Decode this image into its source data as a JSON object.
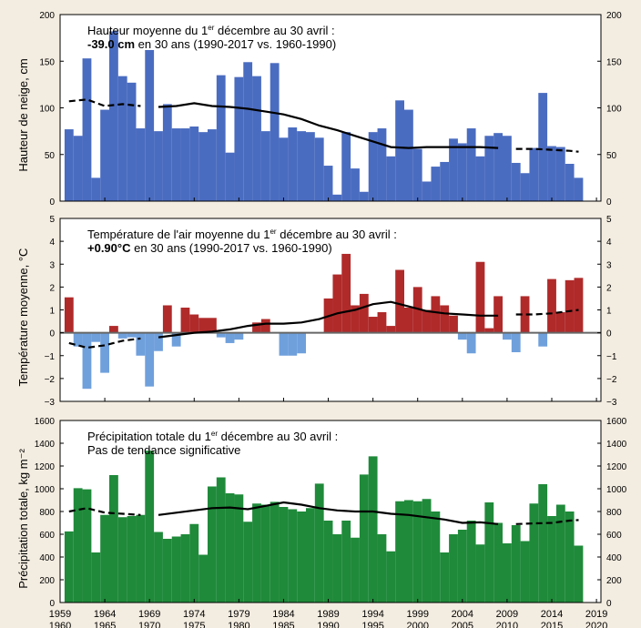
{
  "chart_data": [
    {
      "type": "bar",
      "title_line1": "Hauteur moyenne du 1er décembre au 30 avril :",
      "title_line1_pre": "Hauteur moyenne du 1",
      "title_line1_sup": "er",
      "title_line1_post": " décembre au 30 avril :",
      "title_line2_bold": "-39.0 cm",
      "title_line2_rest": " en 30 ans (1990-2017 vs. 1960-1990)",
      "ylabel": "Hauteur de neige, cm",
      "ylim": [
        0,
        200
      ],
      "yticks": [
        0,
        50,
        100,
        150,
        200
      ],
      "bar_color": "#4a6cc0",
      "x": [
        1960,
        1961,
        1962,
        1963,
        1964,
        1965,
        1966,
        1967,
        1968,
        1969,
        1970,
        1971,
        1972,
        1973,
        1974,
        1975,
        1976,
        1977,
        1978,
        1979,
        1980,
        1981,
        1982,
        1983,
        1984,
        1985,
        1986,
        1987,
        1988,
        1989,
        1990,
        1991,
        1992,
        1993,
        1994,
        1995,
        1996,
        1997,
        1998,
        1999,
        2000,
        2001,
        2002,
        2003,
        2004,
        2005,
        2006,
        2007,
        2008,
        2009,
        2010,
        2011,
        2012,
        2013,
        2014,
        2015,
        2016,
        2017
      ],
      "values": [
        77,
        70,
        153,
        25,
        98,
        182,
        134,
        127,
        78,
        162,
        75,
        104,
        78,
        78,
        80,
        74,
        77,
        135,
        52,
        133,
        149,
        134,
        75,
        148,
        68,
        79,
        75,
        74,
        68,
        38,
        7,
        74,
        35,
        10,
        74,
        78,
        48,
        108,
        98,
        56,
        21,
        37,
        42,
        67,
        62,
        78,
        48,
        70,
        73,
        70,
        41,
        30,
        57,
        116,
        59,
        58,
        40,
        25
      ],
      "trend_x": [
        1960,
        1962,
        1964,
        1966,
        1968,
        1970,
        1972,
        1974,
        1976,
        1978,
        1980,
        1982,
        1984,
        1986,
        1988,
        1990,
        1992,
        1994,
        1996,
        1998,
        2000,
        2002,
        2004,
        2006,
        2008,
        2010,
        2012,
        2014,
        2016,
        2017
      ],
      "trend_y": [
        107,
        109,
        102,
        104,
        102,
        101,
        102,
        105,
        102,
        101,
        99,
        96,
        93,
        88,
        81,
        76,
        70,
        64,
        58,
        57,
        58,
        58,
        58,
        58,
        57,
        56,
        56,
        55,
        54,
        53
      ]
    },
    {
      "type": "bar",
      "title_line1": "Température de l'air moyenne du 1er décembre au 30 avril :",
      "title_line1_pre": "Température de l'air moyenne du 1",
      "title_line1_sup": "er",
      "title_line1_post": " décembre au 30 avril :",
      "title_line2_bold": "+0.90°C",
      "title_line2_rest": " en 30 ans (1990-2017 vs. 1960-1990)",
      "ylabel": "Température moyenne, °C",
      "ylim": [
        -3,
        5
      ],
      "yticks": [
        -3,
        -2,
        -1,
        0,
        1,
        2,
        3,
        4,
        5
      ],
      "pos_color": "#b02a2a",
      "neg_color": "#6fa0dc",
      "x": [
        1960,
        1961,
        1962,
        1963,
        1964,
        1965,
        1966,
        1967,
        1968,
        1969,
        1970,
        1971,
        1972,
        1973,
        1974,
        1975,
        1976,
        1977,
        1978,
        1979,
        1980,
        1981,
        1982,
        1983,
        1984,
        1985,
        1986,
        1987,
        1988,
        1989,
        1990,
        1991,
        1992,
        1993,
        1994,
        1995,
        1996,
        1997,
        1998,
        1999,
        2000,
        2001,
        2002,
        2003,
        2004,
        2005,
        2006,
        2007,
        2008,
        2009,
        2010,
        2011,
        2012,
        2013,
        2014,
        2015,
        2016,
        2017
      ],
      "values": [
        1.55,
        -0.6,
        -2.45,
        -0.4,
        -1.75,
        0.3,
        -0.25,
        -0.2,
        -1.0,
        -2.35,
        -0.8,
        1.2,
        -0.6,
        1.1,
        0.8,
        0.65,
        0.65,
        -0.2,
        -0.45,
        -0.3,
        0.0,
        0.45,
        0.6,
        0.0,
        -1.0,
        -1.0,
        -0.9,
        0.0,
        0.0,
        1.5,
        2.55,
        3.45,
        1.2,
        1.7,
        0.7,
        0.9,
        0.3,
        2.75,
        1.1,
        2.0,
        1.0,
        1.6,
        1.2,
        0.75,
        -0.3,
        -0.9,
        3.1,
        0.2,
        1.6,
        -0.3,
        -0.85,
        1.6,
        0.0,
        -0.6,
        2.35,
        0.9,
        2.3,
        2.4
      ],
      "trend_x": [
        1960,
        1962,
        1964,
        1966,
        1968,
        1970,
        1972,
        1974,
        1976,
        1978,
        1980,
        1982,
        1984,
        1986,
        1988,
        1990,
        1992,
        1994,
        1996,
        1998,
        2000,
        2002,
        2004,
        2006,
        2008,
        2010,
        2012,
        2014,
        2016,
        2017
      ],
      "trend_y": [
        -0.45,
        -0.65,
        -0.55,
        -0.35,
        -0.25,
        -0.2,
        -0.1,
        0.0,
        0.05,
        0.15,
        0.3,
        0.4,
        0.4,
        0.45,
        0.6,
        0.85,
        1.0,
        1.25,
        1.35,
        1.15,
        0.95,
        0.85,
        0.8,
        0.75,
        0.75,
        0.8,
        0.8,
        0.85,
        0.95,
        1.0
      ]
    },
    {
      "type": "bar",
      "title_line1": "Précipitation totale du 1er décembre au 30 avril :",
      "title_line1_pre": "Précipitation totale du 1",
      "title_line1_sup": "er",
      "title_line1_post": " décembre au 30 avril :",
      "title_line2_bold": "",
      "title_line2_rest": "Pas de tendance significative",
      "ylabel": "Précipitation totale, kg m⁻²",
      "ylim": [
        0,
        1600
      ],
      "yticks": [
        0,
        200,
        400,
        600,
        800,
        1000,
        1200,
        1400,
        1600
      ],
      "bar_color": "#1f8a3a",
      "x": [
        1960,
        1961,
        1962,
        1963,
        1964,
        1965,
        1966,
        1967,
        1968,
        1969,
        1970,
        1971,
        1972,
        1973,
        1974,
        1975,
        1976,
        1977,
        1978,
        1979,
        1980,
        1981,
        1982,
        1983,
        1984,
        1985,
        1986,
        1987,
        1988,
        1989,
        1990,
        1991,
        1992,
        1993,
        1994,
        1995,
        1996,
        1997,
        1998,
        1999,
        2000,
        2001,
        2002,
        2003,
        2004,
        2005,
        2006,
        2007,
        2008,
        2009,
        2010,
        2011,
        2012,
        2013,
        2014,
        2015,
        2016,
        2017
      ],
      "values": [
        625,
        1005,
        995,
        440,
        770,
        1120,
        750,
        760,
        770,
        1335,
        620,
        560,
        580,
        600,
        690,
        420,
        1020,
        1100,
        960,
        950,
        710,
        870,
        860,
        885,
        840,
        820,
        800,
        830,
        1045,
        720,
        600,
        720,
        570,
        1125,
        1285,
        600,
        450,
        890,
        900,
        890,
        910,
        800,
        440,
        600,
        640,
        720,
        510,
        880,
        700,
        520,
        680,
        540,
        870,
        1040,
        760,
        860,
        800,
        500
      ],
      "trend_x": [
        1960,
        1962,
        1964,
        1966,
        1968,
        1970,
        1972,
        1974,
        1976,
        1978,
        1980,
        1982,
        1984,
        1986,
        1988,
        1990,
        1992,
        1994,
        1996,
        1998,
        2000,
        2002,
        2004,
        2006,
        2008,
        2010,
        2012,
        2014,
        2016,
        2017
      ],
      "trend_y": [
        800,
        830,
        790,
        780,
        770,
        770,
        790,
        810,
        830,
        835,
        820,
        850,
        880,
        860,
        830,
        810,
        800,
        800,
        780,
        770,
        750,
        730,
        700,
        705,
        690,
        690,
        695,
        700,
        720,
        725
      ]
    }
  ],
  "xaxis": {
    "ticks_major": [
      "1959",
      "1964",
      "1969",
      "1974",
      "1979",
      "1984",
      "1989",
      "1994",
      "1999",
      "2004",
      "2009",
      "2014",
      "2019"
    ],
    "ticks_minor": [
      "1960",
      "1965",
      "1970",
      "1975",
      "1980",
      "1985",
      "1990",
      "1995",
      "2000",
      "2005",
      "2010",
      "2015",
      "2020"
    ],
    "xlim": [
      1959,
      2019.5
    ]
  },
  "solid_range": [
    1969,
    2009
  ]
}
